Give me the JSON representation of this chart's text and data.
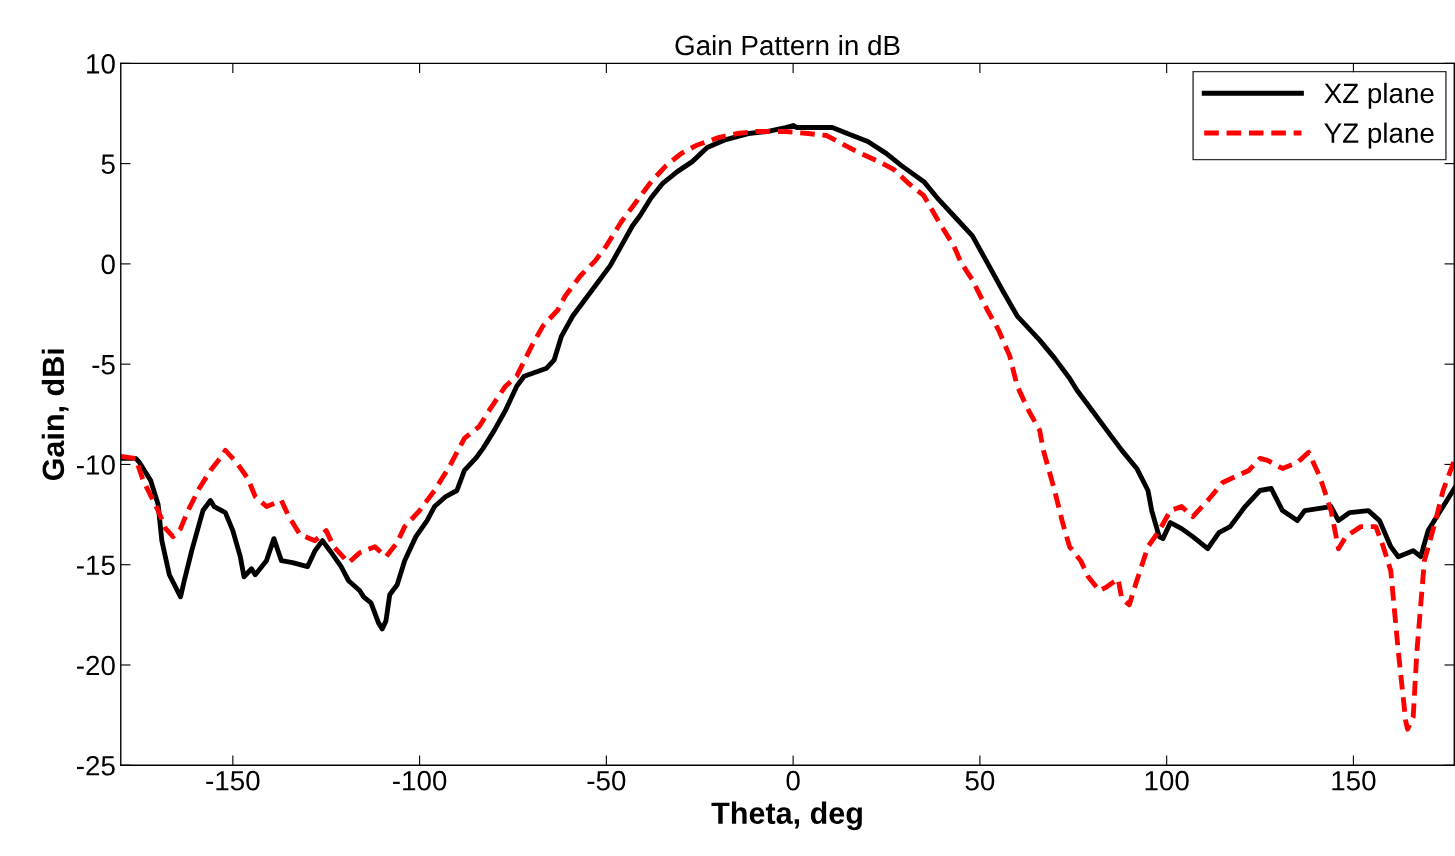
{
  "chart_data": {
    "type": "line",
    "title": "Gain Pattern in dB",
    "xlabel": "Theta, deg",
    "ylabel": "Gain, dBi",
    "xlim": [
      -180,
      177
    ],
    "xticks": [
      -150,
      -100,
      -50,
      0,
      50,
      100,
      150
    ],
    "ylim": [
      -25,
      10
    ],
    "yticks": [
      -25,
      -20,
      -15,
      -10,
      -5,
      0,
      5,
      10
    ],
    "grid": false,
    "legend": "top right",
    "marker": "none",
    "series": [
      {
        "name": "XZ plane",
        "color": "#000000",
        "line_style": "solid",
        "x": [
          -180,
          -176,
          -175,
          -172,
          -170,
          -169,
          -167,
          -164,
          -163,
          -161,
          -158,
          -156,
          -155,
          -152,
          -150,
          -148,
          -147,
          -145,
          -144,
          -141,
          -139,
          -137,
          -134,
          -130,
          -128,
          -126,
          -124,
          -121,
          -119,
          -116,
          -115,
          -113,
          -111,
          -110,
          -109,
          -108,
          -106,
          -104,
          -101,
          -98,
          -96,
          -93,
          -90,
          -88,
          -85,
          -83,
          -80,
          -77,
          -74,
          -72,
          -66,
          -64,
          -62,
          -59,
          -55,
          -53,
          -49,
          -46,
          -43,
          -41,
          -38,
          -35,
          -31,
          -27,
          -23,
          -18,
          -12,
          -7,
          -2,
          0,
          1,
          10.5,
          14.5,
          20,
          25,
          29,
          35,
          39,
          44,
          48,
          52,
          56,
          60,
          66,
          70,
          74,
          76,
          80,
          84,
          88,
          92,
          95,
          96,
          98,
          99,
          101,
          104,
          107,
          111,
          114,
          117,
          121,
          125,
          128,
          131,
          135,
          137,
          144,
          146,
          149,
          154,
          157,
          160,
          162,
          166,
          168,
          170,
          173,
          177
        ],
        "values": [
          -9.7,
          -9.7,
          -9.9,
          -10.8,
          -12,
          -13.8,
          -15.5,
          -16.6,
          -15.8,
          -14.3,
          -12.3,
          -11.8,
          -12.1,
          -12.4,
          -13.3,
          -14.6,
          -15.6,
          -15.2,
          -15.5,
          -14.8,
          -13.7,
          -14.8,
          -14.9,
          -15.1,
          -14.3,
          -13.8,
          -14.3,
          -15.1,
          -15.8,
          -16.3,
          -16.6,
          -16.9,
          -17.9,
          -18.2,
          -17.8,
          -16.5,
          -16,
          -14.8,
          -13.6,
          -12.8,
          -12.1,
          -11.6,
          -11.3,
          -10.3,
          -9.7,
          -9.2,
          -8.3,
          -7.3,
          -6.1,
          -5.6,
          -5.2,
          -4.8,
          -3.6,
          -2.6,
          -1.6,
          -1.1,
          -0.1,
          0.9,
          1.9,
          2.4,
          3.3,
          4,
          4.6,
          5.1,
          5.8,
          6.2,
          6.5,
          6.6,
          6.8,
          6.9,
          6.8,
          6.8,
          6.5,
          6.1,
          5.5,
          4.9,
          4.1,
          3.2,
          2.2,
          1.4,
          0.05,
          -1.3,
          -2.6,
          -3.8,
          -4.7,
          -5.7,
          -6.3,
          -7.3,
          -8.3,
          -9.3,
          -10.2,
          -11.3,
          -12.3,
          -13.6,
          -13.7,
          -12.9,
          -13.2,
          -13.6,
          -14.2,
          -13.4,
          -13.1,
          -12.1,
          -11.3,
          -11.2,
          -12.3,
          -12.8,
          -12.3,
          -12.1,
          -12.8,
          -12.4,
          -12.3,
          -12.8,
          -14.1,
          -14.6,
          -14.3,
          -14.6,
          -13.3,
          -12.4,
          -11.2
        ]
      },
      {
        "name": "YZ plane",
        "color": "#ff0000",
        "line_style": "dashed",
        "x": [
          -180,
          -176,
          -174,
          -170,
          -168,
          -166,
          -164,
          -162,
          -159,
          -156,
          -153,
          -152,
          -149,
          -146,
          -144,
          -141,
          -137,
          -135,
          -132,
          -128,
          -125,
          -123,
          -119,
          -116,
          -112,
          -109,
          -106,
          -104,
          -100,
          -96,
          -92,
          -88,
          -84,
          -81,
          -77,
          -74,
          -70,
          -67,
          -63,
          -61,
          -57,
          -53,
          -50,
          -46,
          -42,
          -38,
          -34,
          -30,
          -26,
          -20,
          -15,
          -10,
          -2,
          4,
          9,
          13,
          17,
          23,
          27,
          31,
          35,
          39,
          43,
          45,
          48,
          52,
          55,
          58,
          60,
          63,
          66,
          67,
          70,
          72,
          74,
          77,
          79,
          82,
          84,
          87,
          88,
          90,
          92,
          95,
          98,
          101,
          104,
          107,
          111,
          115,
          122,
          125,
          127,
          131,
          135,
          138,
          141,
          144,
          146,
          148,
          152,
          156,
          158,
          160,
          162,
          164,
          164.5,
          166,
          167,
          169,
          172,
          174,
          177
        ],
        "values": [
          -9.6,
          -9.7,
          -10.8,
          -12.3,
          -13.2,
          -13.6,
          -13.2,
          -12.3,
          -11.2,
          -10.3,
          -9.6,
          -9.3,
          -9.9,
          -10.7,
          -11.6,
          -12.1,
          -11.8,
          -12.6,
          -13.5,
          -13.8,
          -13.3,
          -14.1,
          -14.9,
          -14.4,
          -14.1,
          -14.6,
          -13.9,
          -13.1,
          -12.3,
          -11.3,
          -10.1,
          -8.7,
          -8.1,
          -7.2,
          -6.1,
          -5.6,
          -4.1,
          -3.1,
          -2.3,
          -1.6,
          -0.6,
          0.15,
          0.9,
          2.1,
          3.1,
          4.1,
          4.9,
          5.5,
          5.9,
          6.3,
          6.5,
          6.6,
          6.6,
          6.5,
          6.4,
          6,
          5.6,
          5.1,
          4.7,
          4,
          3.4,
          2.1,
          0.9,
          0.05,
          -0.8,
          -2.3,
          -3.3,
          -4.6,
          -6.1,
          -7.3,
          -8.3,
          -9.3,
          -11.3,
          -12.8,
          -14.1,
          -14.8,
          -15.6,
          -16.3,
          -16.1,
          -15.7,
          -16.7,
          -17,
          -15.8,
          -14.1,
          -13.3,
          -12.3,
          -12.1,
          -12.6,
          -11.8,
          -10.9,
          -10.3,
          -9.7,
          -9.8,
          -10.2,
          -9.9,
          -9.4,
          -10.6,
          -12.3,
          -14.2,
          -13.6,
          -13.1,
          -13.1,
          -14.1,
          -15.3,
          -19.3,
          -22.8,
          -23.2,
          -22.6,
          -19.3,
          -14.8,
          -12.8,
          -11.3,
          -9.8
        ]
      }
    ]
  }
}
